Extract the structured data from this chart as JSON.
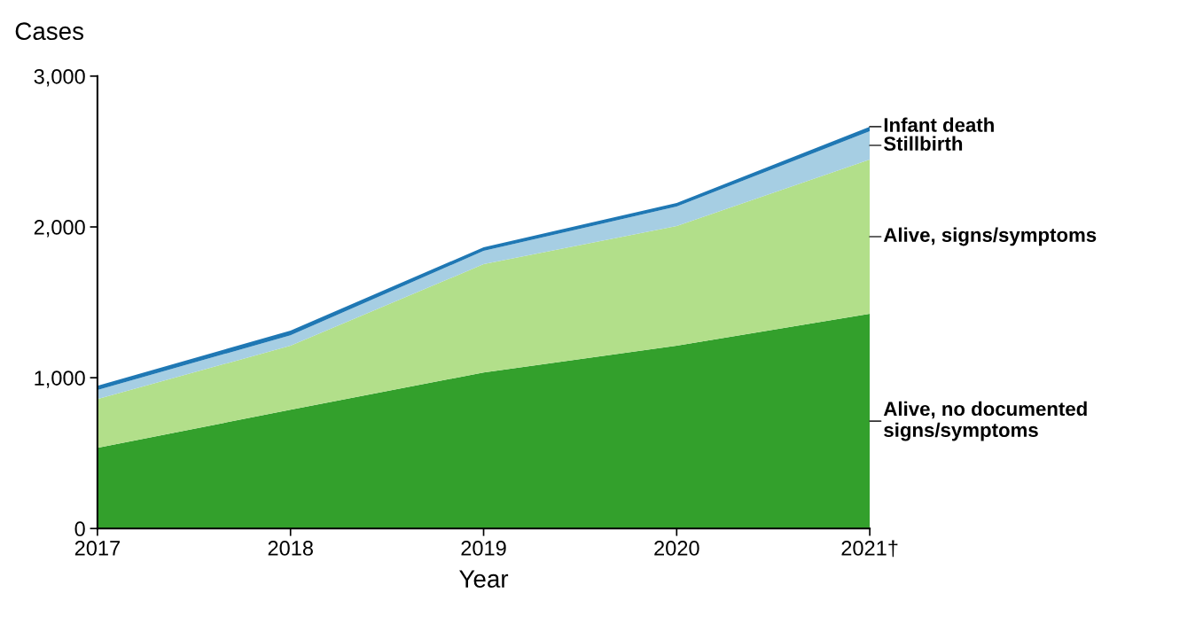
{
  "chart_data": {
    "type": "area",
    "stacked": true,
    "ylabel": "Cases",
    "xlabel": "Year",
    "categories": [
      "2017",
      "2018",
      "2019",
      "2020",
      "2021†"
    ],
    "series": [
      {
        "name": "Alive, no documented\nsigns/symptoms",
        "color": "#33a02c",
        "values": [
          535,
          788,
          1035,
          1212,
          1424
        ]
      },
      {
        "name": "Alive, signs/symptoms",
        "color": "#b2df8a",
        "values": [
          324,
          424,
          718,
          794,
          1023
        ]
      },
      {
        "name": "Stillbirth",
        "color": "#a6cee3",
        "values": [
          59,
          70,
          88,
          129,
          188
        ]
      },
      {
        "name": "Infant death",
        "color": "#1f78b4",
        "values": [
          29,
          30,
          24,
          24,
          30
        ]
      }
    ],
    "ylim": [
      0,
      3000
    ],
    "yticks": [
      {
        "value": 0,
        "label": "0"
      },
      {
        "value": 1000,
        "label": "1,000"
      },
      {
        "value": 2000,
        "label": "2,000"
      },
      {
        "value": 3000,
        "label": "3,000"
      }
    ],
    "grid": false,
    "legend": false
  }
}
